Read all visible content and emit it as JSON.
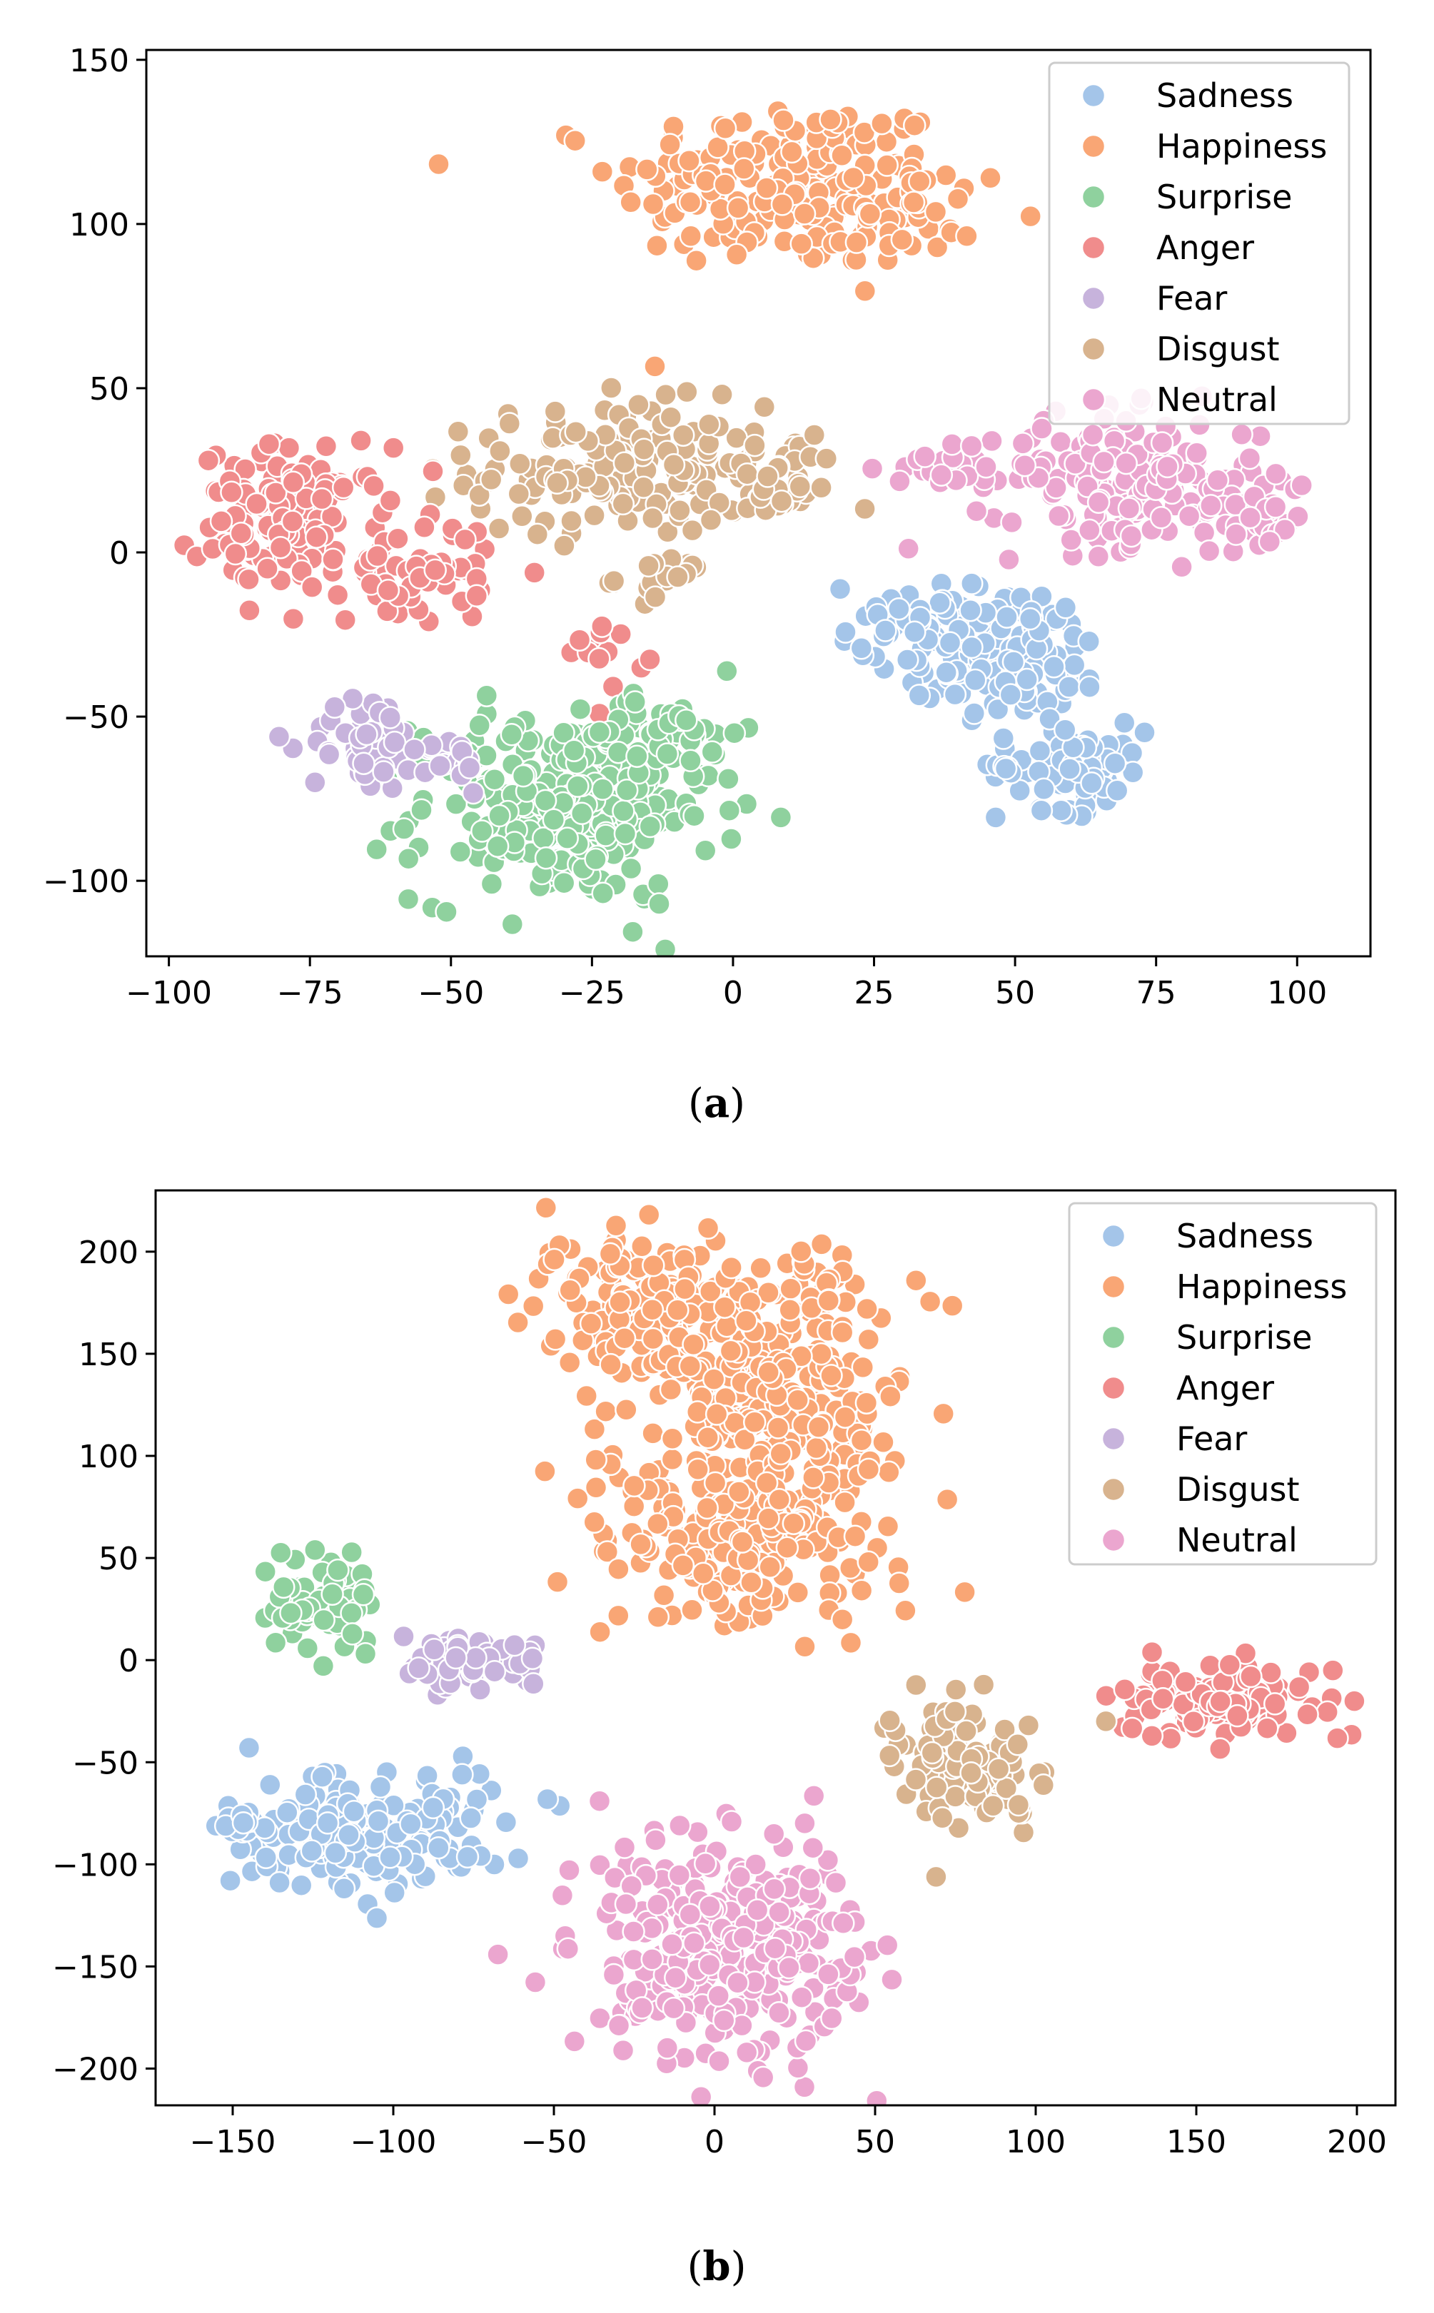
{
  "chart_data": [
    {
      "type": "scatter",
      "caption": {
        "open": "(",
        "letter": "a",
        "close": ")"
      },
      "xlim": [
        -104,
        113
      ],
      "ylim": [
        -123,
        153
      ],
      "xticks": [
        -100,
        -75,
        -50,
        -25,
        0,
        25,
        50,
        75,
        100
      ],
      "yticks": [
        -100,
        -50,
        0,
        50,
        100,
        150
      ],
      "xtick_labels": [
        "−100",
        "−75",
        "−50",
        "−25",
        "0",
        "25",
        "50",
        "75",
        "100"
      ],
      "ytick_labels": [
        "−100",
        "−50",
        "0",
        "50",
        "100",
        "150"
      ],
      "legend": {
        "position": "top-right",
        "entries": [
          "Sadness",
          "Happiness",
          "Surprise",
          "Anger",
          "Fear",
          "Disgust",
          "Neutral"
        ]
      },
      "series": [
        {
          "name": "Happiness",
          "color": "#f9a675",
          "clusters": [
            {
              "cx": 10,
              "cy": 112,
              "rx": 28,
              "ry": 24,
              "n": 190
            },
            {
              "cx": 32,
              "cy": 100,
              "rx": 10,
              "ry": 16,
              "n": 30
            }
          ]
        },
        {
          "name": "Disgust",
          "color": "#d8b38e",
          "clusters": [
            {
              "cx": -20,
              "cy": 25,
              "rx": 24,
              "ry": 18,
              "n": 170
            },
            {
              "cx": 8,
              "cy": 22,
              "rx": 10,
              "ry": 14,
              "n": 30
            },
            {
              "cx": -12,
              "cy": -8,
              "rx": 8,
              "ry": 6,
              "n": 16
            }
          ]
        },
        {
          "name": "Anger",
          "color": "#f08c8c",
          "clusters": [
            {
              "cx": -78,
              "cy": 10,
              "rx": 15,
              "ry": 20,
              "n": 130
            },
            {
              "cx": -55,
              "cy": -5,
              "rx": 12,
              "ry": 15,
              "n": 50
            },
            {
              "cx": -22,
              "cy": -30,
              "rx": 6,
              "ry": 9,
              "n": 14
            }
          ]
        },
        {
          "name": "Surprise",
          "color": "#8fd19e",
          "clusters": [
            {
              "cx": -30,
              "cy": -78,
              "rx": 24,
              "ry": 26,
              "n": 260
            },
            {
              "cx": -12,
              "cy": -55,
              "rx": 12,
              "ry": 10,
              "n": 40
            }
          ]
        },
        {
          "name": "Fear",
          "color": "#c7b3dc",
          "clusters": [
            {
              "cx": -65,
              "cy": -58,
              "rx": 9,
              "ry": 14,
              "n": 50
            },
            {
              "cx": -50,
              "cy": -65,
              "rx": 5,
              "ry": 8,
              "n": 18
            }
          ]
        },
        {
          "name": "Sadness",
          "color": "#a4c5e9",
          "clusters": [
            {
              "cx": 48,
              "cy": -30,
              "rx": 17,
              "ry": 18,
              "n": 160
            },
            {
              "cx": 60,
              "cy": -65,
              "rx": 12,
              "ry": 12,
              "n": 80
            },
            {
              "cx": 28,
              "cy": -20,
              "rx": 8,
              "ry": 10,
              "n": 25
            }
          ]
        },
        {
          "name": "Neutral",
          "color": "#eba6cf",
          "clusters": [
            {
              "cx": 70,
              "cy": 22,
              "rx": 22,
              "ry": 18,
              "n": 160
            },
            {
              "cx": 92,
              "cy": 12,
              "rx": 10,
              "ry": 12,
              "n": 40
            },
            {
              "cx": 38,
              "cy": 25,
              "rx": 10,
              "ry": 10,
              "n": 25
            }
          ]
        }
      ]
    },
    {
      "type": "scatter",
      "caption": {
        "open": "(",
        "letter": "b",
        "close": ")"
      },
      "xlim": [
        -174,
        212
      ],
      "ylim": [
        -218,
        230
      ],
      "xticks": [
        -150,
        -100,
        -50,
        0,
        50,
        100,
        150,
        200
      ],
      "yticks": [
        -200,
        -150,
        -100,
        -50,
        0,
        50,
        100,
        150,
        200
      ],
      "xtick_labels": [
        "−150",
        "−100",
        "−50",
        "0",
        "50",
        "100",
        "150",
        "200"
      ],
      "ytick_labels": [
        "−200",
        "−150",
        "−100",
        "−50",
        "0",
        "50",
        "100",
        "150",
        "200"
      ],
      "legend": {
        "position": "top-right",
        "entries": [
          "Sadness",
          "Happiness",
          "Surprise",
          "Anger",
          "Fear",
          "Disgust",
          "Neutral"
        ]
      },
      "series": [
        {
          "name": "Happiness",
          "color": "#f9a675",
          "clusters": [
            {
              "cx": -25,
              "cy": 175,
              "rx": 25,
              "ry": 30,
              "n": 150
            },
            {
              "cx": 15,
              "cy": 140,
              "rx": 35,
              "ry": 60,
              "n": 300
            },
            {
              "cx": 10,
              "cy": 60,
              "rx": 45,
              "ry": 40,
              "n": 220
            }
          ]
        },
        {
          "name": "Anger",
          "color": "#f08c8c",
          "clusters": [
            {
              "cx": 160,
              "cy": -20,
              "rx": 30,
              "ry": 16,
              "n": 110
            }
          ]
        },
        {
          "name": "Disgust",
          "color": "#d8b38e",
          "clusters": [
            {
              "cx": 78,
              "cy": -50,
              "rx": 20,
              "ry": 28,
              "n": 110
            }
          ]
        },
        {
          "name": "Surprise",
          "color": "#8fd19e",
          "clusters": [
            {
              "cx": -122,
              "cy": 28,
              "rx": 14,
              "ry": 20,
              "n": 70
            }
          ]
        },
        {
          "name": "Fear",
          "color": "#c7b3dc",
          "clusters": [
            {
              "cx": -75,
              "cy": 0,
              "rx": 18,
              "ry": 12,
              "n": 60
            }
          ]
        },
        {
          "name": "Sadness",
          "color": "#a4c5e9",
          "clusters": [
            {
              "cx": -110,
              "cy": -85,
              "rx": 35,
              "ry": 25,
              "n": 180
            },
            {
              "cx": -148,
              "cy": -80,
              "rx": 8,
              "ry": 6,
              "n": 15
            }
          ]
        },
        {
          "name": "Neutral",
          "color": "#eba6cf",
          "clusters": [
            {
              "cx": 5,
              "cy": -140,
              "rx": 38,
              "ry": 50,
              "n": 340
            }
          ]
        }
      ]
    }
  ],
  "colors": {
    "Sadness": "#a4c5e9",
    "Happiness": "#f9a675",
    "Surprise": "#8fd19e",
    "Anger": "#f08c8c",
    "Fear": "#c7b3dc",
    "Disgust": "#d8b38e",
    "Neutral": "#eba6cf"
  }
}
